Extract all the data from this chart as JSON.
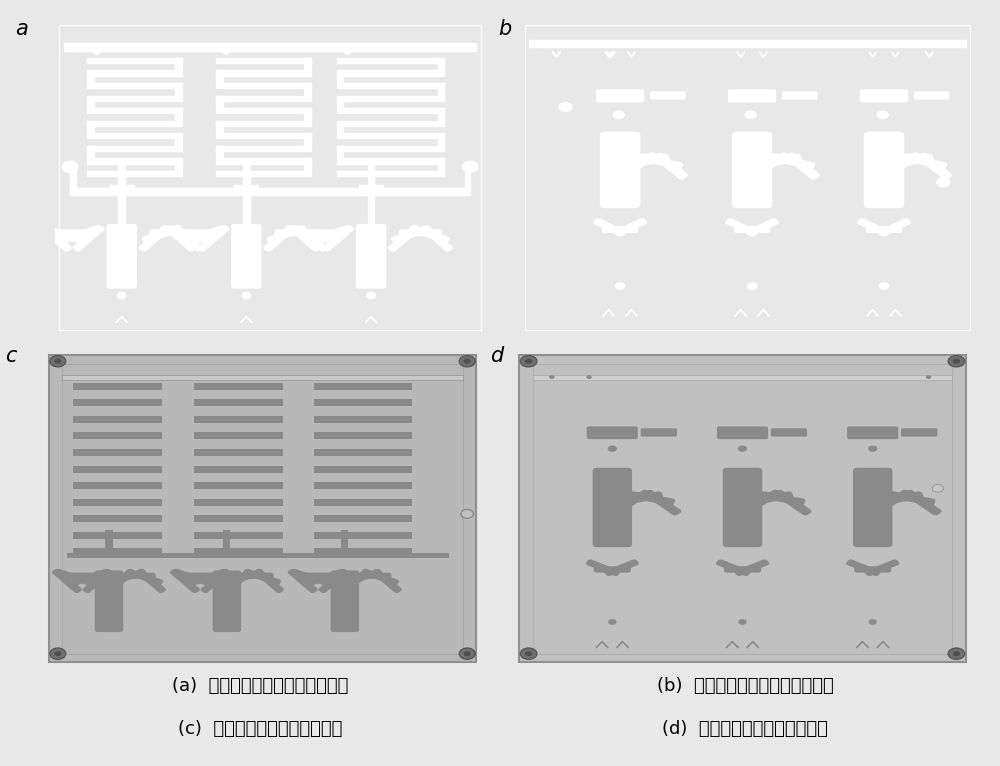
{
  "background_color": "#e8e8e8",
  "panel_labels": [
    "a",
    "b",
    "c",
    "d"
  ],
  "captions": [
    "(a)  多元体积柱芯片上层掩模图案",
    "(b)  多元体积柱芯片下层掩模图案",
    "(c)  多元体积柱芯片上层玻璃片",
    "(d)  多元体积柱芯片下层玻璃片"
  ],
  "caption_fontsize": 13,
  "panel_label_fontsize": 15
}
